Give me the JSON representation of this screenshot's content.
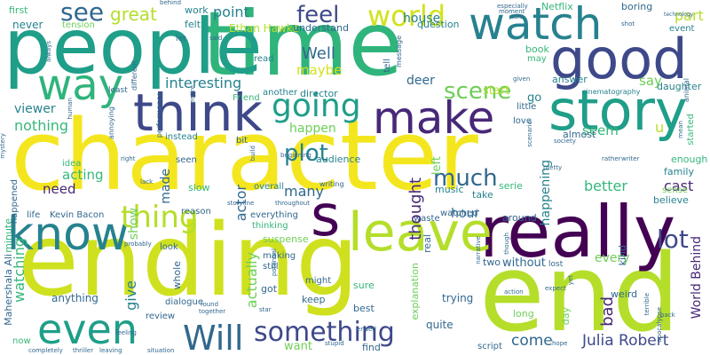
{
  "palette": {
    "background": "#ffffff",
    "yellow": "#f4e61e",
    "lime": "#b5de2b",
    "green": "#6ece58",
    "sea": "#35b779",
    "teal": "#1f9e89",
    "blue": "#26828e",
    "slate": "#31688e",
    "indigo": "#3e4989",
    "violet": "#482878",
    "purple": "#440154"
  },
  "words": {
    "character": "character",
    "ending": "ending",
    "end": "end",
    "time": "time",
    "people": "people",
    "really": "really",
    "good": "good",
    "story": "story",
    "watch": "watch",
    "think": "think",
    "make": "make",
    "leave": "leave",
    "know": "know",
    "s": "s",
    "way": "way",
    "even": "even",
    "will": "Will",
    "world": "world",
    "going": "going",
    "thing": "thing",
    "something": "something",
    "see": "see",
    "feel": "feel",
    "scene": "scene",
    "much": "much",
    "plot": "plot",
    "lot": "lot",
    "great": "great",
    "point": "point",
    "interesting": "interesting",
    "well": "Well",
    "maybe": "maybe",
    "nothing": "nothing",
    "acting": "acting",
    "need": "need",
    "watching": "watching",
    "give": "give",
    "actor": "actor",
    "actually": "actually",
    "want": "want",
    "julia_robert": "Julia Robert",
    "come": "come",
    "bad": "bad",
    "every": "every",
    "without": "without",
    "hour": "hour",
    "thought": "thought",
    "better": "better",
    "cast": "cast",
    "happening": "happening",
    "part": "part",
    "world_behind": "World Behind",
    "seem": "seem",
    "say": "say",
    "u": "u",
    "start": "start",
    "many": "many",
    "made": "made",
    "show": "show",
    "happen": "happen",
    "house": "house",
    "deer": "deer",
    "go": "go",
    "viewer": "viewer",
    "never": "never",
    "first": "first",
    "tension": "tension",
    "felt": "felt",
    "work": "work",
    "ethan_hawke": "Ethan Hawke",
    "understand": "understand",
    "question": "question",
    "netflix": "Netflix",
    "boring": "boring",
    "event": "event",
    "director": "director",
    "another": "another",
    "friend": "Friend",
    "book": "book",
    "may": "may",
    "read": "read",
    "tell": "tell",
    "message": "message",
    "moment": "moment",
    "daughter": "daughter",
    "answer": "answer",
    "little": "little",
    "love": "love",
    "almost": "almost",
    "started": "started",
    "enough": "enough",
    "family": "family",
    "believe": "believe",
    "sense": "sense",
    "serie": "serie",
    "take": "take",
    "music": "music",
    "audience": "audience",
    "overall": "overall",
    "seen": "seen",
    "slow": "slow",
    "idea": "idea",
    "instead": "instead",
    "bit": "bit",
    "left": "left",
    "everything": "everything",
    "reason": "reason",
    "life": "life",
    "kevin_bacon": "Kevin Bacon",
    "mahershala_ali": "Mahershala Ali",
    "minute": "minute",
    "look": "look",
    "making": "making",
    "still": "still",
    "might": "might",
    "got": "got",
    "keep": "keep",
    "sure": "sure",
    "best": "best",
    "explanation": "explanation",
    "trying": "trying",
    "two": "two",
    "around": "around",
    "watched": "watched",
    "waste": "waste",
    "kind": "kind",
    "real": "real",
    "suspense": "suspense",
    "thinking": "thinking",
    "anything": "anything",
    "whole": "whole",
    "review": "review",
    "dialogue": "dialogue",
    "quite": "quite",
    "script": "script",
    "long": "long",
    "day": "day",
    "weird": "weird",
    "find": "find",
    "now": "now",
    "happened": "happened",
    "cinematography": "cinematography",
    "least": "least",
    "lost": "lost",
    "writing": "writing",
    "beginning": "beginning",
    "society": "society",
    "pretty": "pretty",
    "rather": "rather",
    "writer": "writer",
    "animal": "animal",
    "technology": "technology",
    "mean": "mean",
    "narrative": "narrative",
    "though": "though",
    "together": "together",
    "found": "found",
    "potential": "potential",
    "stupid": "stupid",
    "ended": "ended",
    "action": "action",
    "terrible": "terrible",
    "back": "back",
    "feeling": "feeling",
    "completely": "completely",
    "thriller": "thriller",
    "leaving": "leaving",
    "situation": "situation",
    "mystery": "mystery",
    "human": "human",
    "different": "different",
    "annoying": "annoying",
    "performance": "performance",
    "right": "right",
    "lack": "lack",
    "probably": "probably",
    "let": "let",
    "said": "said",
    "especially": "especially",
    "turn": "turn",
    "given": "given",
    "shot": "shot",
    "always": "always",
    "behind": "behind",
    "entire": "entire",
    "scenario": "scenario",
    "storyline": "storyline",
    "throughout": "throughout",
    "build": "build",
    "star": "star",
    "expect": "expect",
    "yet": "yet",
    "hope": "hope",
    "apocalypse": "apocalypse"
  }
}
